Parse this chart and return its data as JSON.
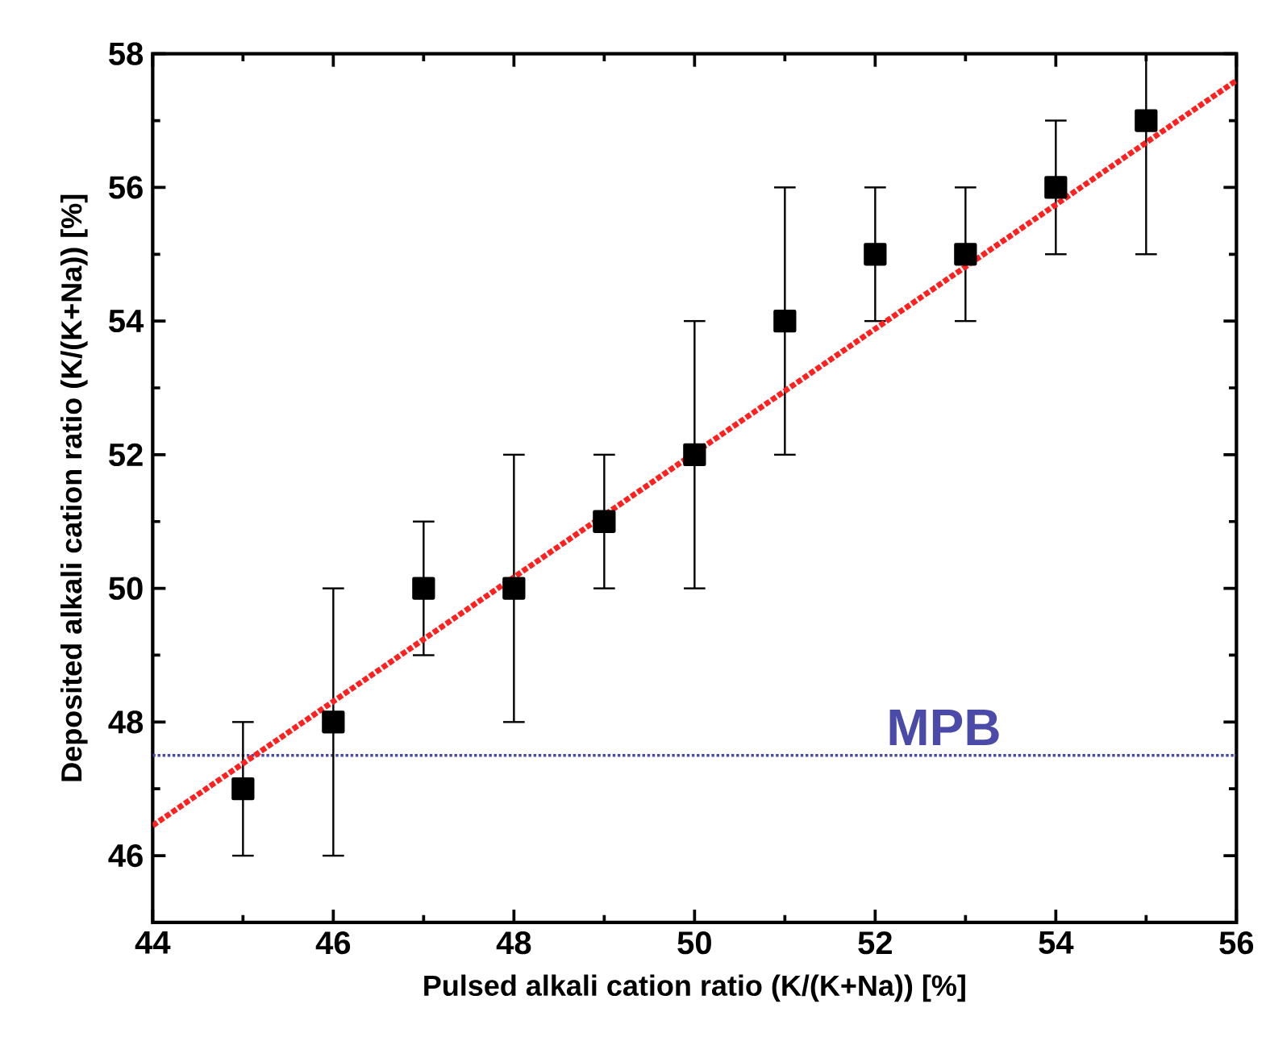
{
  "chart_data": {
    "type": "scatter",
    "xlabel": "Pulsed alkali cation ratio (K/(K+Na)) [%]",
    "ylabel": "Deposited alkali cation ratio (K/(K+Na)) [%]",
    "xlim": [
      44,
      56
    ],
    "ylim": [
      45,
      58
    ],
    "xticks": [
      44,
      46,
      48,
      50,
      52,
      54,
      56
    ],
    "yticks": [
      46,
      48,
      50,
      52,
      54,
      56,
      58
    ],
    "grid": false,
    "series": [
      {
        "color": "#000000",
        "marker": "square",
        "x": [
          45,
          46,
          47,
          48,
          49,
          50,
          51,
          52,
          53,
          54,
          55
        ],
        "values": [
          47,
          48,
          50,
          50,
          51,
          52,
          54,
          55,
          55,
          56,
          57
        ],
        "errors": [
          1,
          2,
          1,
          2,
          1,
          2,
          2,
          1,
          1,
          1,
          [
            55,
            58
          ]
        ]
      },
      {
        "type": "line",
        "color": "#ff2020",
        "marker": "none",
        "line_style": "dotted",
        "x": [
          44,
          56
        ],
        "values": [
          46.45,
          57.6
        ]
      }
    ],
    "ref_lines": [
      {
        "axis": "y",
        "value": 47.5,
        "label": "MPB",
        "color": "#4a4aa8",
        "line_style": "dotted"
      }
    ]
  }
}
